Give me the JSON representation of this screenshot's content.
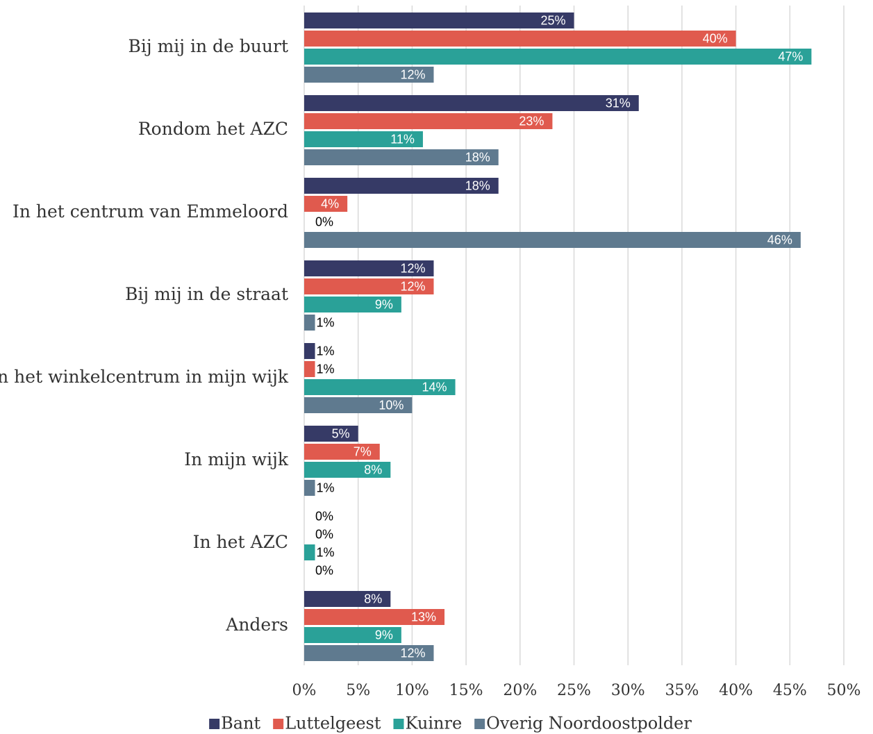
{
  "chart_data": {
    "type": "hbar",
    "categories": [
      "Bij mij in de buurt",
      "Rondom het AZC",
      "In het centrum van Emmeloord",
      "Bij mij in de straat",
      "In het winkelcentrum in mijn wijk",
      "In mijn wijk",
      "In het AZC",
      "Anders"
    ],
    "series": [
      {
        "name": "Bant",
        "color": "#363a66",
        "values": [
          25,
          31,
          18,
          12,
          1,
          5,
          0,
          8
        ],
        "value_labels": [
          "25%",
          "31%",
          "18%",
          "12%",
          "1%",
          "5%",
          "0%",
          "8%"
        ]
      },
      {
        "name": "Luttelgeest",
        "color": "#e05a4e",
        "values": [
          40,
          23,
          4,
          12,
          1,
          7,
          0,
          13
        ],
        "value_labels": [
          "40%",
          "23%",
          "4%",
          "12%",
          "1%",
          "7%",
          "0%",
          "13%"
        ]
      },
      {
        "name": "Kuinre",
        "color": "#2aa198",
        "values": [
          47,
          11,
          0,
          9,
          14,
          8,
          1,
          9
        ],
        "value_labels": [
          "47%",
          "11%",
          "0%",
          "9%",
          "14%",
          "8%",
          "1%",
          "9%"
        ]
      },
      {
        "name": "Overig Noordoostpolder",
        "color": "#5f7a8f",
        "values": [
          12,
          18,
          46,
          1,
          10,
          1,
          0,
          12
        ],
        "value_labels": [
          "12%",
          "18%",
          "46%",
          "1%",
          "10%",
          "1%",
          "0%",
          "12%"
        ]
      }
    ],
    "xlim": [
      0,
      50
    ],
    "xticks": [
      {
        "value": 0,
        "label": "0%"
      },
      {
        "value": 5,
        "label": "5%"
      },
      {
        "value": 10,
        "label": "10%"
      },
      {
        "value": 15,
        "label": "15%"
      },
      {
        "value": 20,
        "label": "20%"
      },
      {
        "value": 25,
        "label": "25%"
      },
      {
        "value": 30,
        "label": "30%"
      },
      {
        "value": 35,
        "label": "35%"
      },
      {
        "value": 40,
        "label": "40%"
      },
      {
        "value": 45,
        "label": "45%"
      },
      {
        "value": 50,
        "label": "50%"
      }
    ],
    "grid": true,
    "legend": "bottom"
  }
}
